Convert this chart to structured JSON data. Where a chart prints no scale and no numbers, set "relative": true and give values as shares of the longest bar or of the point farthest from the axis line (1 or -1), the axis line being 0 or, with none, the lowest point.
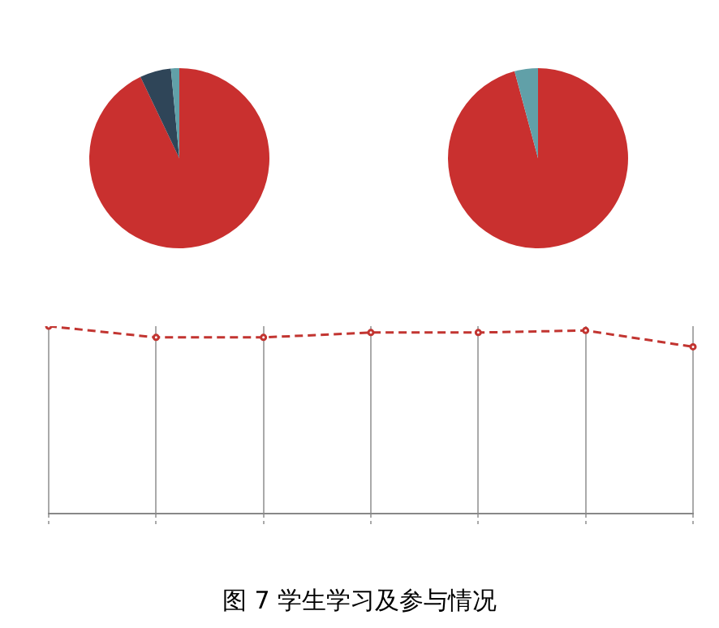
{
  "chart_data": [
    {
      "type": "pie",
      "categories": [
        null,
        null,
        null
      ],
      "values": [
        92.9,
        5.6,
        1.5
      ],
      "colors": [
        "#c9302f",
        "#2f4558",
        "#61a0a8"
      ]
    },
    {
      "type": "pie",
      "categories": [
        null,
        null,
        null
      ],
      "values": [
        95.8,
        0,
        4.2
      ],
      "colors": [
        "#c9302f",
        "#2f4558",
        "#61a0a8"
      ]
    },
    {
      "type": "line",
      "relative": true,
      "categories": [
        null,
        null,
        null,
        null,
        null,
        null,
        null
      ],
      "grid": "x",
      "marker": "circle",
      "line_style": "dashed",
      "series": [
        {
          "color": "#c23531",
          "values": [
            1,
            0.94,
            0.94,
            0.966,
            0.966,
            0.977,
            0.89
          ]
        }
      ],
      "annotations": [
        "图 7 学生学习及参与情况"
      ]
    }
  ]
}
